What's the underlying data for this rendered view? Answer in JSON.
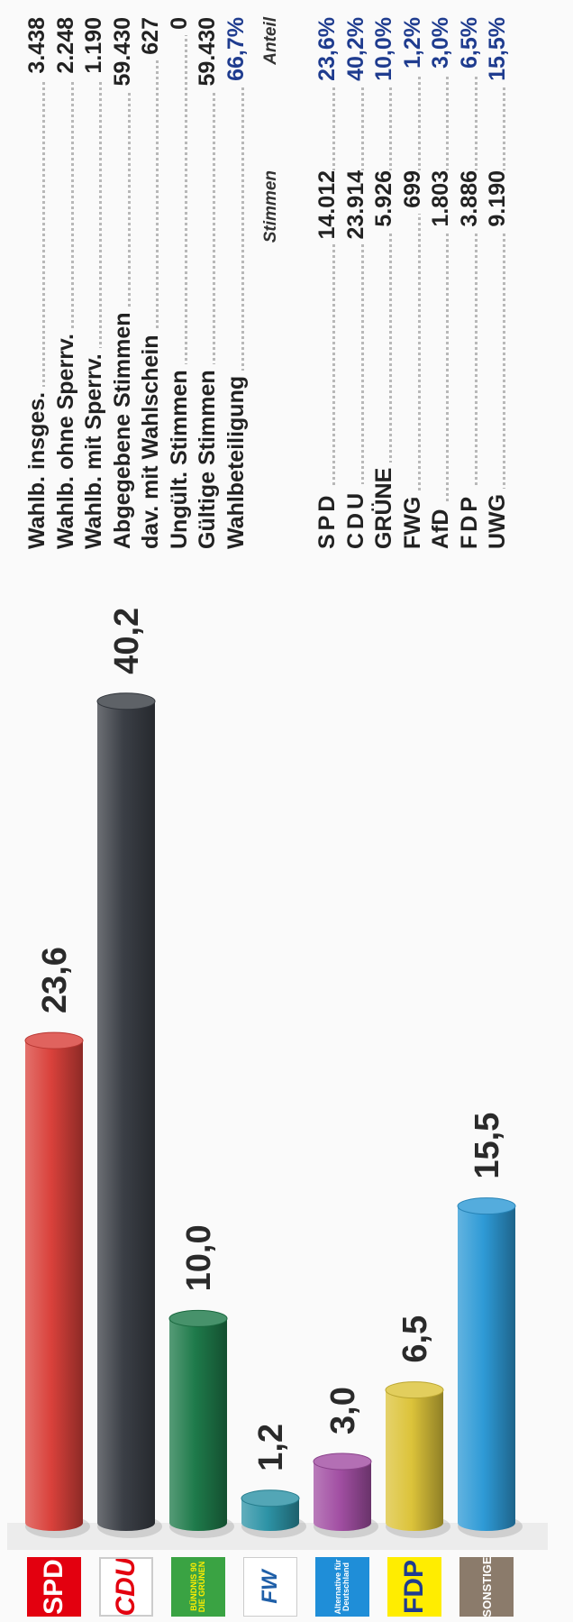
{
  "chart_data": {
    "type": "bar",
    "categories": [
      "SPD",
      "CDU",
      "GRÜNE",
      "FWG",
      "AfD",
      "FDP",
      "SONSTIGE"
    ],
    "values": [
      23.6,
      40.2,
      10.0,
      1.2,
      3.0,
      6.5,
      15.5
    ],
    "value_labels": [
      "23,6",
      "40,2",
      "10,0",
      "1,2",
      "3,0",
      "6,5",
      "15,5"
    ],
    "colors": [
      "#d9413b",
      "#3b3f46",
      "#1e7a4a",
      "#2d93a6",
      "#a24fa3",
      "#dcc33a",
      "#2e9ad6"
    ],
    "ylim": [
      0,
      45
    ],
    "grid": false
  },
  "logos": [
    {
      "name": "spd",
      "text": "SPD",
      "bg": "#e3000f",
      "fg": "#ffffff"
    },
    {
      "name": "cdu",
      "text": "CDU",
      "bg": "#ffffff",
      "fg": "#e3000f"
    },
    {
      "name": "gruene",
      "text": "BÜNDNIS 90 DIE GRÜNEN",
      "bg": "#3aa343",
      "fg": "#ffed00"
    },
    {
      "name": "fw",
      "text": "FW",
      "bg": "#ffffff",
      "fg": "#1f5fa8"
    },
    {
      "name": "afd",
      "text": "Alternative für Deutschland",
      "bg": "#1f8ed8",
      "fg": "#ffffff"
    },
    {
      "name": "fdp",
      "text": "FDP",
      "bg": "#ffed00",
      "fg": "#1f3c8f"
    },
    {
      "name": "sonstige",
      "text": "SONSTIGE",
      "bg": "#8b7b6b",
      "fg": "#ffffff"
    }
  ],
  "stats": [
    {
      "label": "Wahlb. insges.",
      "value": "3.438"
    },
    {
      "label": "Wahlb. ohne Sperrv.",
      "value": "2.248"
    },
    {
      "label": "Wahlb. mit Sperrv.",
      "value": "1.190"
    },
    {
      "label": "Abgegebene Stimmen",
      "value": "59.430"
    },
    {
      "label": "dav. mit Wahlschein",
      "value": "627"
    },
    {
      "label": "Ungült. Stimmen",
      "value": "0"
    },
    {
      "label": "Gültige Stimmen",
      "value": "59.430"
    },
    {
      "label": "Wahlbeteiligung",
      "value": "66,7%"
    }
  ],
  "results_header": {
    "votes": "Stimmen",
    "share": "Anteil"
  },
  "results": [
    {
      "party": "SPD",
      "votes": "14.012",
      "share": "23,6%"
    },
    {
      "party": "CDU",
      "votes": "23.914",
      "share": "40,2%"
    },
    {
      "party": "GRÜNE",
      "votes": "5.926",
      "share": "10,0%"
    },
    {
      "party": "FWG",
      "votes": "699",
      "share": "1,2%"
    },
    {
      "party": "AfD",
      "votes": "1.803",
      "share": "3,0%"
    },
    {
      "party": "FDP",
      "votes": "3.886",
      "share": "6,5%"
    },
    {
      "party": "UWG",
      "votes": "9.190",
      "share": "15,5%"
    }
  ]
}
